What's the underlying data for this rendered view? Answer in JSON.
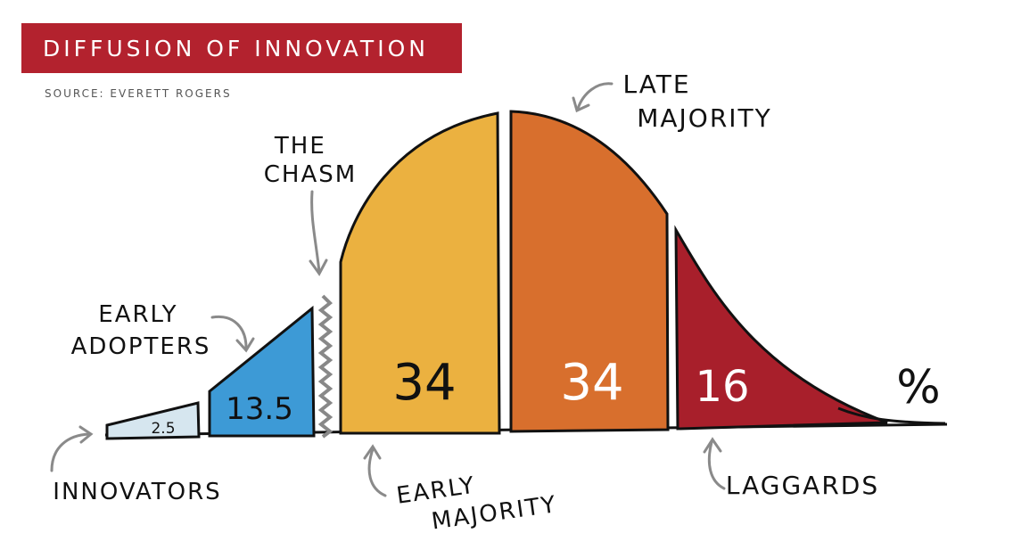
{
  "title": "DIFFUSION OF INNOVATION",
  "source": "SOURCE: EVERETT ROGERS",
  "percent_sign": "%",
  "chasm_label": [
    "THE",
    "CHASM"
  ],
  "segments": [
    {
      "label_lines": [
        "INNOVATORS"
      ],
      "value": "2.5",
      "color": "#d6e6ef"
    },
    {
      "label_lines": [
        "EARLY",
        "ADOPTERS"
      ],
      "value": "13.5",
      "color": "#3d9ad6"
    },
    {
      "label_lines": [
        "EARLY",
        "MAJORITY"
      ],
      "value": "34",
      "color": "#ebb140"
    },
    {
      "label_lines": [
        "LATE",
        "MAJORITY"
      ],
      "value": "34",
      "color": "#d86f2d"
    },
    {
      "label_lines": [
        "LAGGARDS"
      ],
      "value": "16",
      "color": "#a81f2b"
    }
  ],
  "colors": {
    "title_bg": "#b3222e",
    "outline": "#111111",
    "arrow": "#8a8a8a"
  }
}
